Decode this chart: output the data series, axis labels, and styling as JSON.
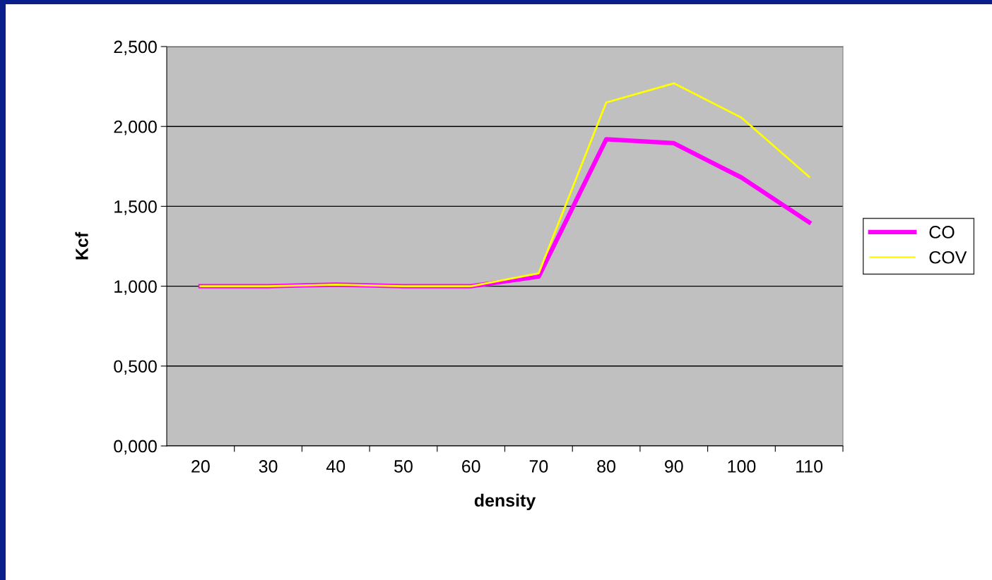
{
  "chart_data": {
    "type": "line",
    "xlabel": "density",
    "ylabel": "Kcf",
    "categories": [
      "20",
      "30",
      "40",
      "50",
      "60",
      "70",
      "80",
      "90",
      "100",
      "110"
    ],
    "series": [
      {
        "name": "CO",
        "color": "#ff00ff",
        "values": [
          1.0,
          1.0,
          1.01,
          1.0,
          1.0,
          1.06,
          1.92,
          1.895,
          1.68,
          1.4
        ]
      },
      {
        "name": "COV",
        "color": "#ffff00",
        "values": [
          1.0,
          1.0,
          1.01,
          1.0,
          1.0,
          1.08,
          2.15,
          2.27,
          2.055,
          1.685
        ]
      }
    ],
    "ylim": [
      0,
      2.5
    ],
    "yticks": [
      {
        "value": 0,
        "label": "0,000"
      },
      {
        "value": 0.5,
        "label": "0,500"
      },
      {
        "value": 1.0,
        "label": "1,000"
      },
      {
        "value": 1.5,
        "label": "1,500"
      },
      {
        "value": 2.0,
        "label": "2,000"
      },
      {
        "value": 2.5,
        "label": "2,500"
      }
    ],
    "grid": "y",
    "legend": "right",
    "marker": "none",
    "line_style": "solid"
  }
}
